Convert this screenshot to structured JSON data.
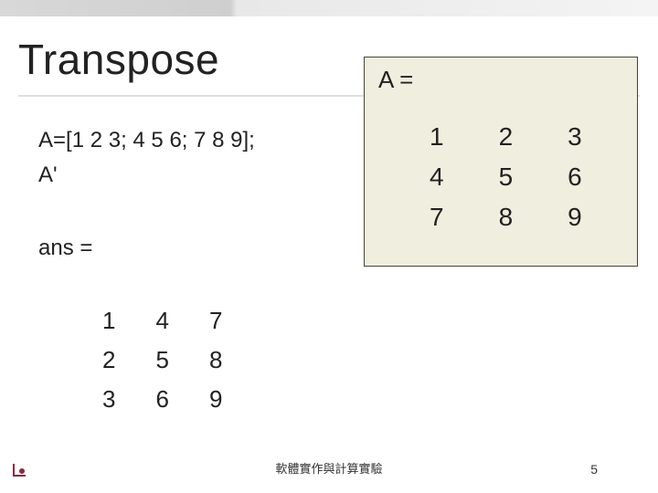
{
  "slide": {
    "title": "Transpose",
    "code": {
      "line1": "A=[1 2 3; 4 5 6; 7 8 9];",
      "line2": "A'"
    },
    "ans_label": "ans =",
    "ans_matrix": {
      "rows": [
        [
          "1",
          "4",
          "7"
        ],
        [
          "2",
          "5",
          "8"
        ],
        [
          "3",
          "6",
          "9"
        ]
      ]
    },
    "matrix_box": {
      "label": "A =",
      "background_color": "#f0eedf",
      "border_color": "#474538",
      "rows": [
        [
          "1",
          "2",
          "3"
        ],
        [
          "4",
          "5",
          "6"
        ],
        [
          "7",
          "8",
          "9"
        ]
      ]
    },
    "footer": "軟體實作與計算實驗",
    "page_number": "5",
    "title_fontsize": 46,
    "body_fontsize": 24,
    "matrix_fontsize": 28,
    "text_color": "#222222",
    "corner_accent_color": "#8a2a44"
  }
}
